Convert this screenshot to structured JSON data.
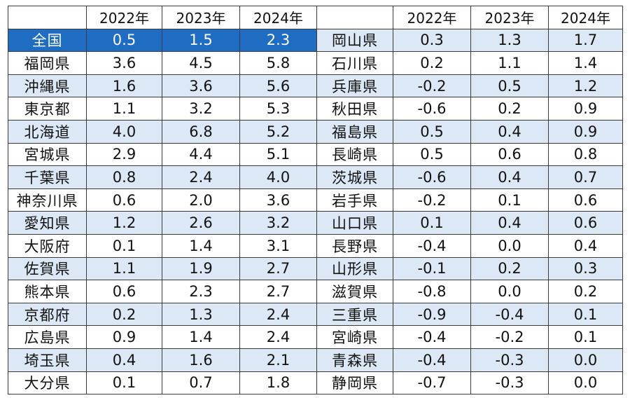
{
  "table": {
    "years": [
      "2022年",
      "2023年",
      "2024年"
    ],
    "colors": {
      "header_highlight": "#1f6dc2",
      "row_shade": "#dce8f5",
      "negative": "#e0201c",
      "border": "#3b3b3b"
    },
    "rows": [
      {
        "left": {
          "name": "全国",
          "v": [
            "0.5",
            "1.5",
            "2.3"
          ]
        },
        "right": {
          "name": "岡山県",
          "v": [
            "0.3",
            "1.3",
            "1.7"
          ]
        }
      },
      {
        "left": {
          "name": "福岡県",
          "v": [
            "3.6",
            "4.5",
            "5.8"
          ]
        },
        "right": {
          "name": "石川県",
          "v": [
            "0.2",
            "1.1",
            "1.4"
          ]
        }
      },
      {
        "left": {
          "name": "沖縄県",
          "v": [
            "1.6",
            "3.6",
            "5.6"
          ]
        },
        "right": {
          "name": "兵庫県",
          "v": [
            "-0.2",
            "0.5",
            "1.2"
          ]
        }
      },
      {
        "left": {
          "name": "東京都",
          "v": [
            "1.1",
            "3.2",
            "5.3"
          ]
        },
        "right": {
          "name": "秋田県",
          "v": [
            "-0.6",
            "0.2",
            "0.9"
          ]
        }
      },
      {
        "left": {
          "name": "北海道",
          "v": [
            "4.0",
            "6.8",
            "5.2"
          ]
        },
        "right": {
          "name": "福島県",
          "v": [
            "0.5",
            "0.4",
            "0.9"
          ]
        }
      },
      {
        "left": {
          "name": "宮城県",
          "v": [
            "2.9",
            "4.4",
            "5.1"
          ]
        },
        "right": {
          "name": "長崎県",
          "v": [
            "0.5",
            "0.6",
            "0.8"
          ]
        }
      },
      {
        "left": {
          "name": "千葉県",
          "v": [
            "0.8",
            "2.4",
            "4.0"
          ]
        },
        "right": {
          "name": "茨城県",
          "v": [
            "-0.6",
            "0.4",
            "0.7"
          ]
        }
      },
      {
        "left": {
          "name": "神奈川県",
          "v": [
            "0.6",
            "2.0",
            "3.6"
          ]
        },
        "right": {
          "name": "岩手県",
          "v": [
            "-0.2",
            "0.1",
            "0.6"
          ]
        }
      },
      {
        "left": {
          "name": "愛知県",
          "v": [
            "1.2",
            "2.6",
            "3.2"
          ]
        },
        "right": {
          "name": "山口県",
          "v": [
            "0.1",
            "0.4",
            "0.6"
          ]
        }
      },
      {
        "left": {
          "name": "大阪府",
          "v": [
            "0.1",
            "1.4",
            "3.1"
          ]
        },
        "right": {
          "name": "長野県",
          "v": [
            "-0.4",
            "0.0",
            "0.4"
          ]
        }
      },
      {
        "left": {
          "name": "佐賀県",
          "v": [
            "1.1",
            "1.9",
            "2.7"
          ]
        },
        "right": {
          "name": "山形県",
          "v": [
            "-0.1",
            "0.2",
            "0.3"
          ]
        }
      },
      {
        "left": {
          "name": "熊本県",
          "v": [
            "0.6",
            "2.3",
            "2.7"
          ]
        },
        "right": {
          "name": "滋賀県",
          "v": [
            "-0.8",
            "0.0",
            "0.2"
          ]
        }
      },
      {
        "left": {
          "name": "京都府",
          "v": [
            "0.2",
            "1.3",
            "2.4"
          ]
        },
        "right": {
          "name": "三重県",
          "v": [
            "-0.9",
            "-0.4",
            "0.1"
          ]
        }
      },
      {
        "left": {
          "name": "広島県",
          "v": [
            "0.9",
            "1.4",
            "2.4"
          ]
        },
        "right": {
          "name": "宮崎県",
          "v": [
            "-0.4",
            "-0.2",
            "0.1"
          ]
        }
      },
      {
        "left": {
          "name": "埼玉県",
          "v": [
            "0.4",
            "1.6",
            "2.1"
          ]
        },
        "right": {
          "name": "青森県",
          "v": [
            "-0.4",
            "-0.3",
            "0.0"
          ]
        }
      },
      {
        "left": {
          "name": "大分県",
          "v": [
            "0.1",
            "0.7",
            "1.8"
          ]
        },
        "right": {
          "name": "静岡県",
          "v": [
            "-0.7",
            "-0.3",
            "0.0"
          ]
        }
      }
    ]
  }
}
